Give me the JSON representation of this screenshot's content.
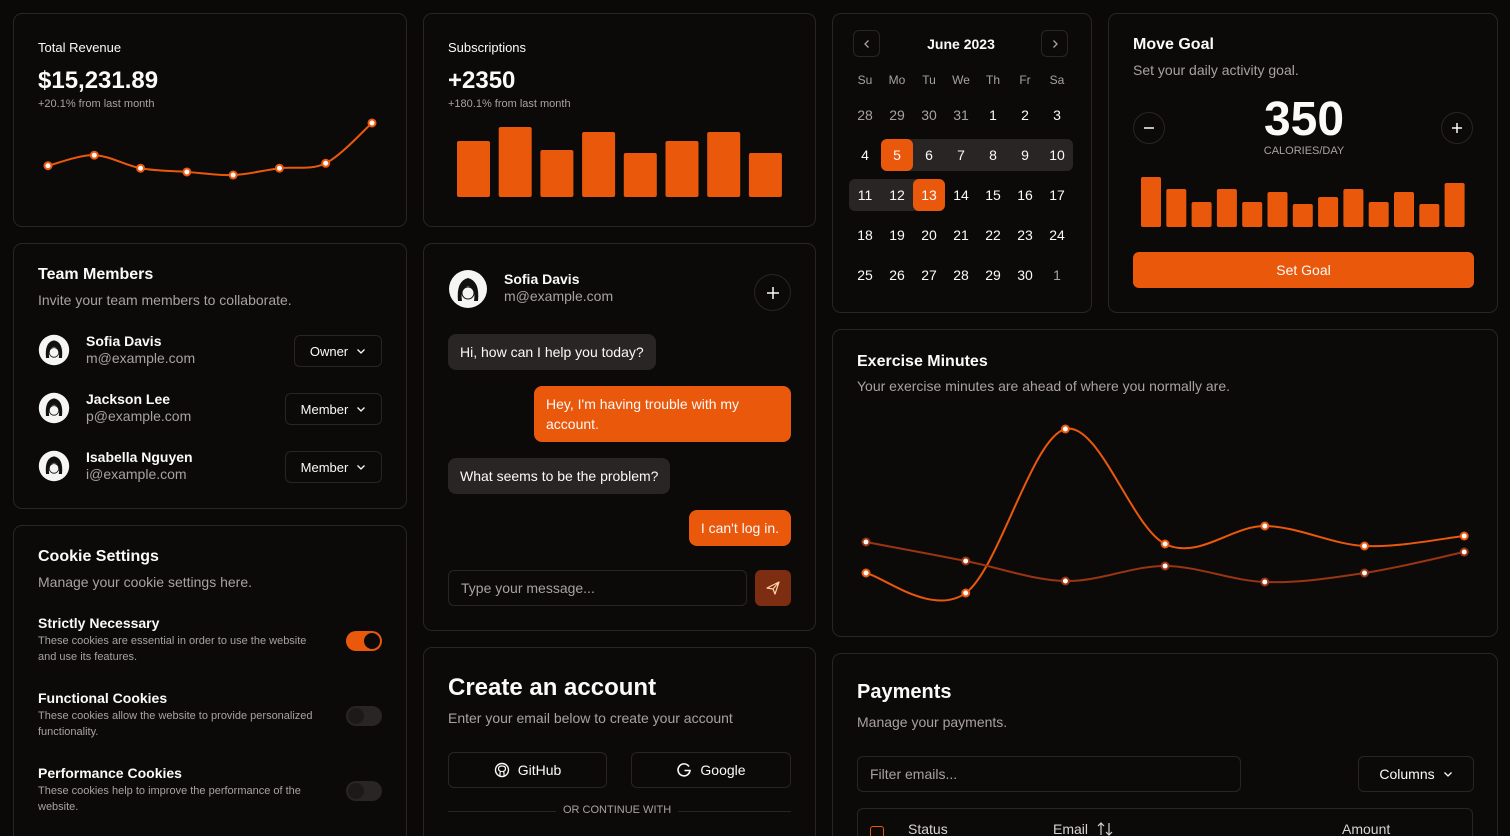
{
  "revenue": {
    "title": "Total Revenue",
    "value": "$15,231.89",
    "change": "+20.1% from last month",
    "chart": {
      "type": "line",
      "values": [
        23,
        40,
        19,
        13,
        8,
        19,
        27,
        92
      ],
      "ylim": [
        0,
        100
      ],
      "color": "#ea580c"
    }
  },
  "subscriptions": {
    "title": "Subscriptions",
    "value": "+2350",
    "change": "+180.1% from last month",
    "chart": {
      "type": "bar",
      "values": [
        56,
        70,
        47,
        65,
        44,
        56,
        65,
        44
      ],
      "ylim": [
        0,
        70
      ],
      "color": "#ea580c"
    }
  },
  "team": {
    "title": "Team Members",
    "subtitle": "Invite your team members to collaborate.",
    "members": [
      {
        "name": "Sofia Davis",
        "email": "m@example.com",
        "role": "Owner"
      },
      {
        "name": "Jackson Lee",
        "email": "p@example.com",
        "role": "Member"
      },
      {
        "name": "Isabella Nguyen",
        "email": "i@example.com",
        "role": "Member"
      }
    ]
  },
  "cookies": {
    "title": "Cookie Settings",
    "subtitle": "Manage your cookie settings here.",
    "items": [
      {
        "title": "Strictly Necessary",
        "description": "These cookies are essential in order to use the website and use its features.",
        "enabled": true
      },
      {
        "title": "Functional Cookies",
        "description": "These cookies allow the website to provide personalized functionality.",
        "enabled": false
      },
      {
        "title": "Performance Cookies",
        "description": "These cookies help to improve the performance of the website.",
        "enabled": false
      }
    ]
  },
  "chat": {
    "user": {
      "name": "Sofia Davis",
      "email": "m@example.com"
    },
    "messages": [
      {
        "text": "Hi, how can I help you today?",
        "side": "left"
      },
      {
        "text": "Hey, I'm having trouble with my account.",
        "side": "right"
      },
      {
        "text": "What seems to be the problem?",
        "side": "left"
      },
      {
        "text": "I can't log in.",
        "side": "right"
      }
    ],
    "placeholder": "Type your message..."
  },
  "account": {
    "title": "Create an account",
    "subtitle": "Enter your email below to create your account",
    "buttons": [
      "GitHub",
      "Google"
    ],
    "divider": "OR CONTINUE WITH"
  },
  "calendar": {
    "month": "June 2023",
    "weekdays": [
      "Su",
      "Mo",
      "Tu",
      "We",
      "Th",
      "Fr",
      "Sa"
    ],
    "weeks": [
      [
        28,
        29,
        30,
        31,
        1,
        2,
        3
      ],
      [
        4,
        5,
        6,
        7,
        8,
        9,
        10
      ],
      [
        11,
        12,
        13,
        14,
        15,
        16,
        17
      ],
      [
        18,
        19,
        20,
        21,
        22,
        23,
        24
      ],
      [
        25,
        26,
        27,
        28,
        29,
        30,
        1
      ]
    ]
  },
  "goal": {
    "title": "Move Goal",
    "subtitle": "Set your daily activity goal.",
    "value": 350,
    "unit": "CALORIES/DAY",
    "button": "Set Goal",
    "chart": {
      "type": "bar",
      "values": [
        50,
        38,
        25,
        38,
        25,
        35,
        23,
        30,
        38,
        25,
        35,
        23,
        44
      ],
      "ylim": [
        0,
        50
      ],
      "color": "#ea580c"
    }
  },
  "exercise": {
    "title": "Exercise Minutes",
    "subtitle": "Your exercise minutes are ahead of where you normally are.",
    "chart": {
      "type": "line",
      "ylim": [
        0,
        180
      ],
      "series": [
        {
          "color": "#ea580c",
          "values": [
            27,
            7,
            171,
            56,
            74,
            54,
            64
          ]
        },
        {
          "color": "#9a3412",
          "values": [
            58,
            39,
            19,
            34,
            18,
            27,
            48
          ]
        }
      ]
    }
  },
  "payments": {
    "title": "Payments",
    "subtitle": "Manage your payments.",
    "filter_placeholder": "Filter emails...",
    "columns_button": "Columns",
    "headers": [
      "Status",
      "Email",
      "Amount"
    ]
  }
}
